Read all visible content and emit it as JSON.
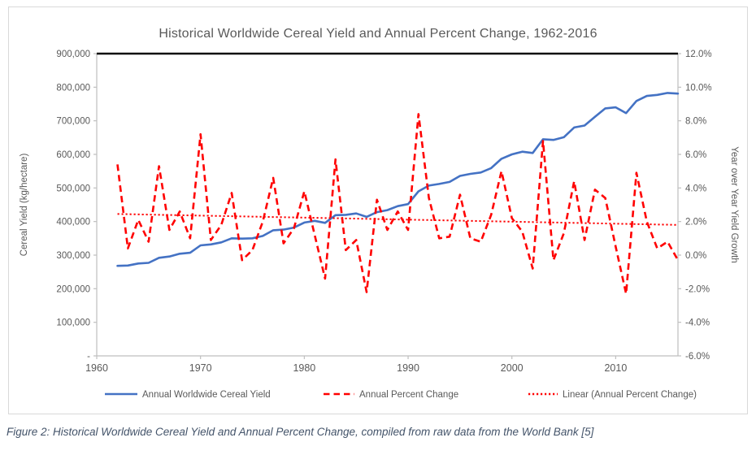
{
  "page": {
    "caption": "Figure 2: Historical Worldwide Cereal Yield and Annual Percent Change, compiled from raw data from the World Bank [5]"
  },
  "chart_data": {
    "type": "line",
    "title": "Historical Worldwide Cereal Yield and Annual Percent Change, 1962-2016",
    "x": [
      1962,
      1963,
      1964,
      1965,
      1966,
      1967,
      1968,
      1969,
      1970,
      1971,
      1972,
      1973,
      1974,
      1975,
      1976,
      1977,
      1978,
      1979,
      1980,
      1981,
      1982,
      1983,
      1984,
      1985,
      1986,
      1987,
      1988,
      1989,
      1990,
      1991,
      1992,
      1993,
      1994,
      1995,
      1996,
      1997,
      1998,
      1999,
      2000,
      2001,
      2002,
      2003,
      2004,
      2005,
      2006,
      2007,
      2008,
      2009,
      2010,
      2011,
      2012,
      2013,
      2014,
      2015,
      2016
    ],
    "series": [
      {
        "name": "Annual Worldwide Cereal Yield",
        "axis": "left",
        "color": "#4472C4",
        "line_style": "solid",
        "values": [
          268000,
          269000,
          275000,
          277000,
          292000,
          296000,
          304000,
          307000,
          329000,
          332000,
          338000,
          350000,
          349000,
          350000,
          357000,
          374000,
          376000,
          382000,
          397000,
          402000,
          396000,
          419000,
          420000,
          424000,
          414000,
          428000,
          434000,
          446000,
          452000,
          490000,
          507000,
          512000,
          518000,
          536000,
          542000,
          546000,
          559000,
          587000,
          600000,
          608000,
          604000,
          645000,
          643000,
          651000,
          680000,
          686000,
          712000,
          737000,
          740000,
          723000,
          759000,
          774000,
          777000,
          783000,
          781000
        ]
      },
      {
        "name": "Annual Percent Change",
        "axis": "right",
        "color": "#FF0000",
        "line_style": "dashed",
        "values": [
          5.4,
          0.4,
          2.1,
          0.8,
          5.3,
          1.5,
          2.6,
          1.0,
          7.2,
          0.9,
          1.8,
          3.7,
          -0.3,
          0.3,
          2.0,
          4.6,
          0.7,
          1.6,
          3.8,
          1.2,
          -1.4,
          5.7,
          0.3,
          0.9,
          -2.2,
          3.3,
          1.5,
          2.6,
          1.5,
          8.4,
          3.4,
          1.0,
          1.1,
          3.6,
          1.0,
          0.8,
          2.4,
          5.0,
          2.2,
          1.4,
          -0.8,
          6.8,
          -0.3,
          1.3,
          4.4,
          0.9,
          3.9,
          3.4,
          0.5,
          -2.3,
          4.9,
          2.0,
          0.4,
          0.8,
          -0.3
        ]
      },
      {
        "name": "Linear (Annual Percent Change)",
        "axis": "right",
        "color": "#FF0000",
        "line_style": "dotted",
        "trend_start": 2.45,
        "trend_end": 1.8
      }
    ],
    "left_axis": {
      "label": "Cereal Yield (kg/hectare)",
      "min": 0,
      "max": 900000,
      "tick_step": 100000,
      "tick_labels_top_to_bottom": [
        "900,000",
        "800,000",
        "700,000",
        "600,000",
        "500,000",
        "400,000",
        "300,000",
        "200,000",
        "100,000",
        "-"
      ]
    },
    "right_axis": {
      "label": "Year over Year Yield Growth",
      "min": -6,
      "max": 12,
      "tick_step": 2,
      "tick_labels_top_to_bottom": [
        "12.0%",
        "10.0%",
        "8.0%",
        "6.0%",
        "4.0%",
        "2.0%",
        "0.0%",
        "-2.0%",
        "-4.0%",
        "-6.0%"
      ]
    },
    "x_axis": {
      "min": 1960,
      "max": 2016,
      "tick_years": [
        1960,
        1970,
        1980,
        1990,
        2000,
        2010
      ]
    },
    "legend": {
      "position": "bottom",
      "entries": [
        "Annual Worldwide Cereal Yield",
        "Annual Percent Change",
        "Linear (Annual Percent Change)"
      ]
    },
    "grid": "none"
  },
  "colors": {
    "yield_line": "#4472C4",
    "percent_line": "#FF0000",
    "axis_line": "#BFBFBF",
    "axis_text": "#595959",
    "title_text": "#595959",
    "caption_text": "#44546A",
    "plot_top_border": "#0d0d0d",
    "chart_border": "#D9D9D9"
  }
}
